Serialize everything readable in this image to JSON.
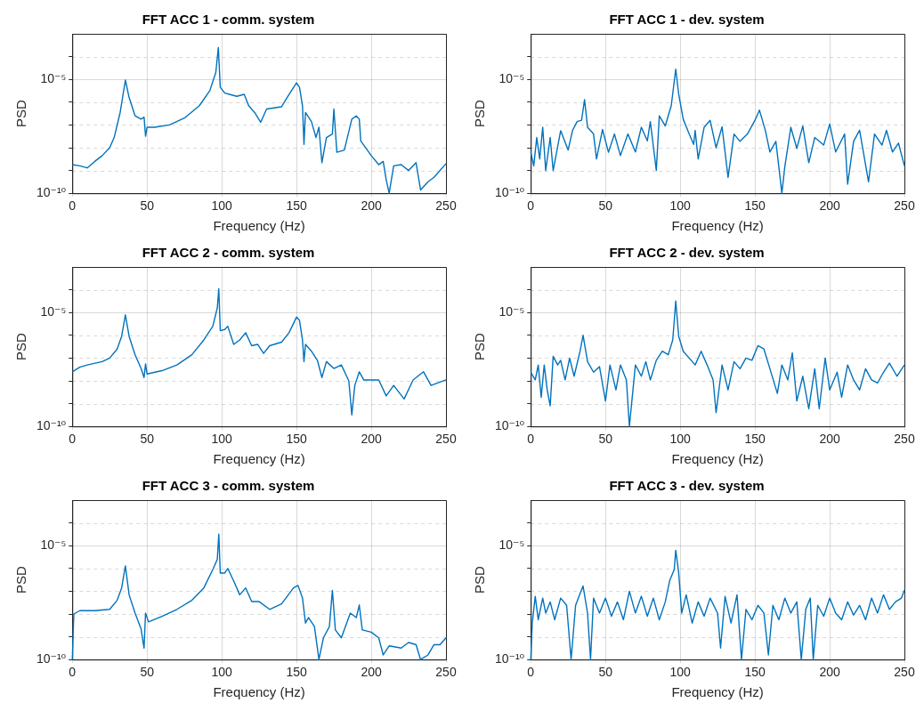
{
  "chart_data": [
    {
      "type": "line",
      "title": "FFT ACC 1 - comm. system",
      "xlabel": "Frequency (Hz)",
      "ylabel": "PSD",
      "log": "y",
      "grid": true,
      "marker": "none",
      "color": "#0072bd",
      "xlim": [
        0,
        250
      ],
      "xticks": [
        0,
        50,
        100,
        150,
        200,
        250
      ],
      "ylim": [
        1e-10,
        0.001
      ],
      "yticks": [
        {
          "value": 1e-10,
          "label": "10⁻¹⁰"
        },
        {
          "value": 1e-09,
          "label": null
        },
        {
          "value": 1e-08,
          "label": null
        },
        {
          "value": 1e-07,
          "label": null
        },
        {
          "value": 1e-06,
          "label": null
        },
        {
          "value": 1e-05,
          "label": "10⁻⁵"
        },
        {
          "value": 0.0001,
          "label": null
        }
      ],
      "x": [
        0,
        5,
        10,
        15,
        20,
        25,
        28,
        32,
        35.5,
        38,
        42,
        46,
        48,
        49,
        50,
        55,
        65,
        75,
        85,
        92,
        96,
        97.7,
        99,
        102,
        110,
        115,
        118,
        122,
        126,
        130,
        140,
        145,
        150,
        152,
        154,
        155,
        156,
        160,
        163,
        165,
        167,
        170,
        174,
        175,
        177,
        182,
        187,
        190,
        192,
        193,
        200,
        205,
        208,
        210,
        212,
        215,
        220,
        225,
        230,
        233,
        238,
        242,
        250
      ],
      "values": [
        1.8e-09,
        1.6e-09,
        1.3e-09,
        2.5e-09,
        4.5e-09,
        1e-08,
        2.8e-08,
        3.5e-07,
        9.3e-06,
        1.6e-06,
        2.5e-07,
        1.8e-07,
        2.2e-07,
        3.2e-08,
        7.9e-08,
        7.9e-08,
        1e-07,
        2e-07,
        7e-07,
        3.2e-06,
        2e-05,
        0.00025,
        4.5e-06,
        2.5e-06,
        1.8e-06,
        2.2e-06,
        7e-07,
        3.5e-07,
        1.3e-07,
        5e-07,
        6.3e-07,
        2.2e-06,
        7e-06,
        4.5e-06,
        7e-07,
        1.4e-08,
        3.5e-07,
        1.4e-07,
        2.8e-08,
        7.9e-08,
        2.2e-09,
        2.8e-08,
        4e-08,
        5e-07,
        6.3e-09,
        7.9e-09,
        1.8e-07,
        2.5e-07,
        1.8e-07,
        2e-08,
        4.5e-09,
        1.8e-09,
        2.5e-09,
        4e-10,
        1e-10,
        1.6e-09,
        1.8e-09,
        1e-09,
        2.2e-09,
        1.4e-10,
        3.2e-10,
        5e-10,
        2e-09
      ]
    },
    {
      "type": "line",
      "title": "FFT ACC 1 - dev. system",
      "xlabel": "Frequency (Hz)",
      "ylabel": "PSD",
      "log": "y",
      "grid": true,
      "marker": "none",
      "color": "#0072bd",
      "xlim": [
        0,
        250
      ],
      "xticks": [
        0,
        50,
        100,
        150,
        200,
        250
      ],
      "ylim": [
        1e-10,
        0.001
      ],
      "yticks": [
        {
          "value": 1e-10,
          "label": "10⁻¹⁰"
        },
        {
          "value": 1e-09,
          "label": null
        },
        {
          "value": 1e-08,
          "label": null
        },
        {
          "value": 1e-07,
          "label": null
        },
        {
          "value": 1e-06,
          "label": null
        },
        {
          "value": 1e-05,
          "label": "10⁻⁵"
        },
        {
          "value": 0.0001,
          "label": null
        }
      ],
      "x": [
        0,
        2,
        4,
        6,
        8,
        10,
        13,
        15,
        20,
        25,
        28,
        31,
        34,
        36,
        38,
        42,
        44,
        48,
        52,
        56,
        60,
        65,
        70,
        74,
        78,
        80,
        84,
        86,
        90,
        94,
        97,
        99,
        102,
        106,
        109,
        110,
        112,
        116,
        120,
        124,
        128,
        132,
        136,
        140,
        145,
        150,
        153,
        157,
        160,
        164,
        168,
        170,
        174,
        178,
        182,
        186,
        190,
        196,
        200,
        204,
        210,
        212,
        216,
        220,
        226,
        230,
        235,
        238,
        242,
        246,
        250
      ],
      "values": [
        6.5e-09,
        1.6e-09,
        2.8e-08,
        3.2e-09,
        7.9e-08,
        1e-09,
        2.8e-08,
        1e-09,
        5.6e-08,
        7.9e-09,
        5.8e-08,
        1.4e-07,
        1.6e-07,
        1.3e-06,
        7.9e-08,
        4e-08,
        3.2e-09,
        6.3e-08,
        6.3e-09,
        4e-08,
        4.5e-09,
        4e-08,
        6.5e-09,
        7.9e-08,
        2e-08,
        1.4e-07,
        1e-09,
        2.5e-07,
        9e-08,
        7e-07,
        2.8e-05,
        2.2e-06,
        1.8e-07,
        4e-08,
        1.4e-08,
        5.8e-08,
        3.2e-09,
        7.9e-08,
        1.6e-07,
        1e-08,
        8.3e-08,
        5e-10,
        4e-08,
        1.9e-08,
        4e-08,
        1.6e-07,
        4.5e-07,
        5.6e-08,
        6.5e-09,
        1.9e-08,
        1e-10,
        1.5e-09,
        7.9e-08,
        9.3e-09,
        9e-08,
        2.2e-09,
        2.8e-08,
        1.3e-08,
        1.1e-07,
        6.5e-09,
        4e-08,
        2.5e-10,
        1.9e-08,
        5.8e-08,
        3.2e-10,
        4e-08,
        1.3e-08,
        5.8e-08,
        6.5e-09,
        1.6e-08,
        1.6e-09
      ]
    },
    {
      "type": "line",
      "title": "FFT ACC 2 - comm. system",
      "xlabel": "Frequency (Hz)",
      "ylabel": "PSD",
      "log": "y",
      "grid": true,
      "marker": "none",
      "color": "#0072bd",
      "xlim": [
        0,
        250
      ],
      "xticks": [
        0,
        50,
        100,
        150,
        200,
        250
      ],
      "ylim": [
        1e-10,
        0.001
      ],
      "yticks": [
        {
          "value": 1e-10,
          "label": "10⁻¹⁰"
        },
        {
          "value": 1e-09,
          "label": null
        },
        {
          "value": 1e-08,
          "label": null
        },
        {
          "value": 1e-07,
          "label": null
        },
        {
          "value": 1e-06,
          "label": null
        },
        {
          "value": 1e-05,
          "label": "10⁻⁵"
        },
        {
          "value": 0.0001,
          "label": null
        }
      ],
      "x": [
        0,
        5,
        10,
        20,
        25,
        30,
        33,
        35.5,
        38,
        42,
        46,
        48,
        49,
        50,
        60,
        70,
        80,
        88,
        94,
        97,
        98,
        99,
        102,
        104,
        108,
        112,
        116,
        120,
        124,
        128,
        132,
        140,
        145,
        150,
        152,
        154,
        155,
        156,
        160,
        164,
        167,
        170,
        175,
        180,
        185,
        187,
        189,
        192,
        195,
        205,
        210,
        215,
        222,
        228,
        235,
        240,
        250
      ],
      "values": [
        2.5e-08,
        4e-08,
        5e-08,
        7e-08,
        1e-07,
        2.5e-07,
        9e-07,
        7.9e-06,
        9e-07,
        1.4e-07,
        3.5e-08,
        1.4e-08,
        5.6e-08,
        2e-08,
        2.8e-08,
        5e-08,
        1.4e-07,
        6.3e-07,
        2.5e-06,
        1.6e-05,
        0.00011,
        1.6e-06,
        1.8e-06,
        2.5e-06,
        4e-07,
        6.3e-07,
        1.3e-06,
        3.5e-07,
        4e-07,
        1.6e-07,
        3.5e-07,
        5e-07,
        1.3e-06,
        6.3e-06,
        4.5e-06,
        6.3e-07,
        7e-08,
        4e-07,
        2e-07,
        7.9e-08,
        1.4e-08,
        7e-08,
        3.5e-08,
        5e-08,
        1e-08,
        3.2e-10,
        6.3e-09,
        2.5e-08,
        1.1e-08,
        1.1e-08,
        2.2e-09,
        6.3e-09,
        1.6e-09,
        1.1e-08,
        2.5e-08,
        6.3e-09,
        1.1e-08
      ]
    },
    {
      "type": "line",
      "title": "FFT ACC 2 - dev. system",
      "xlabel": "Frequency (Hz)",
      "ylabel": "PSD",
      "log": "y",
      "grid": true,
      "marker": "none",
      "color": "#0072bd",
      "xlim": [
        0,
        250
      ],
      "xticks": [
        0,
        50,
        100,
        150,
        200,
        250
      ],
      "ylim": [
        1e-10,
        0.001
      ],
      "yticks": [
        {
          "value": 1e-10,
          "label": "10⁻¹⁰"
        },
        {
          "value": 1e-09,
          "label": null
        },
        {
          "value": 1e-08,
          "label": null
        },
        {
          "value": 1e-07,
          "label": null
        },
        {
          "value": 1e-06,
          "label": null
        },
        {
          "value": 1e-05,
          "label": "10⁻⁵"
        },
        {
          "value": 0.0001,
          "label": null
        }
      ],
      "x": [
        0,
        3,
        5,
        7,
        9,
        11,
        13,
        15,
        18,
        20,
        23,
        26,
        29,
        33,
        35,
        38,
        42,
        46,
        50,
        53,
        57,
        60,
        64,
        66,
        70,
        74,
        77,
        80,
        84,
        88,
        92,
        95,
        97,
        99,
        102,
        106,
        110,
        114,
        118,
        122,
        124,
        128,
        132,
        136,
        140,
        144,
        148,
        152,
        156,
        160,
        165,
        168,
        172,
        175,
        178,
        182,
        186,
        190,
        193,
        197,
        200,
        205,
        208,
        212,
        216,
        220,
        224,
        228,
        232,
        236,
        240,
        245,
        250
      ],
      "values": [
        2.4e-08,
        1.1e-08,
        5e-08,
        1.9e-09,
        5e-08,
        4e-09,
        8e-10,
        1.2e-07,
        5e-08,
        8e-08,
        1.1e-08,
        1e-07,
        1.6e-08,
        2e-07,
        1e-06,
        7e-08,
        2.4e-08,
        4.2e-08,
        1.3e-09,
        5e-08,
        4e-09,
        5e-08,
        1.1e-08,
        1e-10,
        5e-08,
        1.6e-08,
        7e-08,
        1.1e-08,
        8e-08,
        2e-07,
        1.4e-07,
        6.3e-07,
        3.2e-05,
        9e-07,
        2e-07,
        1e-07,
        5e-08,
        2e-07,
        5e-08,
        1.1e-08,
        4e-10,
        5e-08,
        4e-09,
        7e-08,
        3.4e-08,
        1e-07,
        8e-08,
        3.5e-07,
        2.5e-07,
        3.4e-08,
        2.8e-09,
        5e-08,
        1.1e-08,
        1.7e-07,
        1.3e-09,
        1.6e-08,
        6e-10,
        3.4e-08,
        6e-10,
        1e-07,
        4e-09,
        2.4e-08,
        1.9e-09,
        5e-08,
        1.1e-08,
        4e-09,
        3.4e-08,
        1.1e-08,
        8e-09,
        2.4e-08,
        6e-08,
        1.6e-08,
        5e-08
      ]
    },
    {
      "type": "line",
      "title": "FFT ACC 3 - comm. system",
      "xlabel": "Frequency (Hz)",
      "ylabel": "PSD",
      "log": "y",
      "grid": true,
      "marker": "none",
      "color": "#0072bd",
      "xlim": [
        0,
        250
      ],
      "xticks": [
        0,
        50,
        100,
        150,
        200,
        250
      ],
      "ylim": [
        1e-10,
        0.001
      ],
      "yticks": [
        {
          "value": 1e-10,
          "label": "10⁻¹⁰"
        },
        {
          "value": 1e-09,
          "label": null
        },
        {
          "value": 1e-08,
          "label": null
        },
        {
          "value": 1e-07,
          "label": null
        },
        {
          "value": 1e-06,
          "label": null
        },
        {
          "value": 1e-05,
          "label": "10⁻⁵"
        },
        {
          "value": 0.0001,
          "label": null
        }
      ],
      "x": [
        0,
        1,
        5,
        15,
        25,
        30,
        33,
        35.5,
        38,
        42,
        46,
        48,
        49,
        51,
        60,
        70,
        80,
        88,
        94,
        97,
        98,
        99,
        102,
        104,
        108,
        112,
        116,
        120,
        125,
        132,
        140,
        148,
        151,
        154,
        156,
        158,
        162,
        165,
        168,
        172,
        174,
        176,
        180,
        186,
        190,
        192,
        194,
        200,
        205,
        208,
        212,
        220,
        225,
        230,
        233,
        238,
        242,
        246,
        250
      ],
      "values": [
        1e-10,
        1e-08,
        1.4e-08,
        1.4e-08,
        1.6e-08,
        4e-08,
        1.4e-07,
        1.3e-06,
        7e-08,
        1.1e-08,
        2.2e-09,
        3.2e-10,
        1.1e-08,
        4.5e-09,
        7.9e-09,
        1.6e-08,
        4e-08,
        1.4e-07,
        9e-07,
        2.5e-06,
        3.2e-05,
        6.3e-07,
        6.3e-07,
        1e-06,
        2.8e-07,
        7e-08,
        1.4e-07,
        3.5e-08,
        3.5e-08,
        1.6e-08,
        2.8e-08,
        1.4e-07,
        1.8e-07,
        5e-08,
        4e-09,
        7e-09,
        2.8e-09,
        1e-10,
        9e-10,
        2.8e-09,
        1.1e-07,
        2e-09,
        9e-10,
        1.1e-08,
        7e-09,
        2.5e-08,
        2e-09,
        1.6e-09,
        9e-10,
        1.6e-10,
        4e-10,
        3.2e-10,
        5.6e-10,
        4.5e-10,
        1e-10,
        1.6e-10,
        4.5e-10,
        4.5e-10,
        9e-10
      ]
    },
    {
      "type": "line",
      "title": "FFT ACC 3 - dev. system",
      "xlabel": "Frequency (Hz)",
      "ylabel": "PSD",
      "log": "y",
      "grid": true,
      "marker": "none",
      "color": "#0072bd",
      "xlim": [
        0,
        250
      ],
      "xticks": [
        0,
        50,
        100,
        150,
        200,
        250
      ],
      "ylim": [
        1e-10,
        0.001
      ],
      "yticks": [
        {
          "value": 1e-10,
          "label": "10⁻¹⁰"
        },
        {
          "value": 1e-09,
          "label": null
        },
        {
          "value": 1e-08,
          "label": null
        },
        {
          "value": 1e-07,
          "label": null
        },
        {
          "value": 1e-06,
          "label": null
        },
        {
          "value": 1e-05,
          "label": "10⁻⁵"
        },
        {
          "value": 0.0001,
          "label": null
        }
      ],
      "x": [
        0,
        1,
        3,
        5,
        8,
        10,
        13,
        16,
        20,
        24,
        27,
        30,
        33,
        35,
        38,
        40,
        42,
        46,
        50,
        54,
        58,
        62,
        66,
        70,
        74,
        78,
        82,
        86,
        90,
        93,
        96,
        97,
        99,
        101,
        104,
        108,
        112,
        116,
        120,
        125,
        127,
        130,
        134,
        138,
        141,
        144,
        148,
        152,
        156,
        159,
        162,
        166,
        170,
        174,
        178,
        181,
        184,
        187,
        189,
        192,
        196,
        200,
        204,
        208,
        212,
        216,
        220,
        224,
        228,
        232,
        236,
        240,
        244,
        248,
        250
      ],
      "values": [
        1e-10,
        4e-09,
        6e-08,
        5.6e-09,
        5e-08,
        1.1e-08,
        3.4e-08,
        5.6e-09,
        5e-08,
        2.4e-08,
        1e-10,
        2.4e-08,
        8e-08,
        1.7e-07,
        1.1e-08,
        1e-10,
        5e-08,
        1.1e-08,
        5e-08,
        8e-09,
        3.4e-08,
        5.6e-09,
        1e-07,
        1.1e-08,
        6e-08,
        8e-09,
        5e-08,
        5.6e-09,
        3.4e-08,
        3e-07,
        9e-07,
        6.3e-06,
        6.3e-07,
        1.1e-08,
        7e-08,
        4e-09,
        3.4e-08,
        8e-09,
        5e-08,
        1.1e-08,
        3.2e-10,
        6e-08,
        4e-09,
        7e-08,
        1e-10,
        1.6e-08,
        5.6e-09,
        2.4e-08,
        1.1e-08,
        1.6e-10,
        2.4e-08,
        5.6e-09,
        5e-08,
        1.1e-08,
        3.4e-08,
        1e-10,
        1.6e-08,
        5e-08,
        1e-10,
        2.4e-08,
        8e-09,
        5e-08,
        1.1e-08,
        5.6e-09,
        3.4e-08,
        9e-09,
        2.4e-08,
        5.6e-09,
        5e-08,
        1.1e-08,
        7e-08,
        1.6e-08,
        3.4e-08,
        5e-08,
        1.1e-07
      ]
    }
  ]
}
